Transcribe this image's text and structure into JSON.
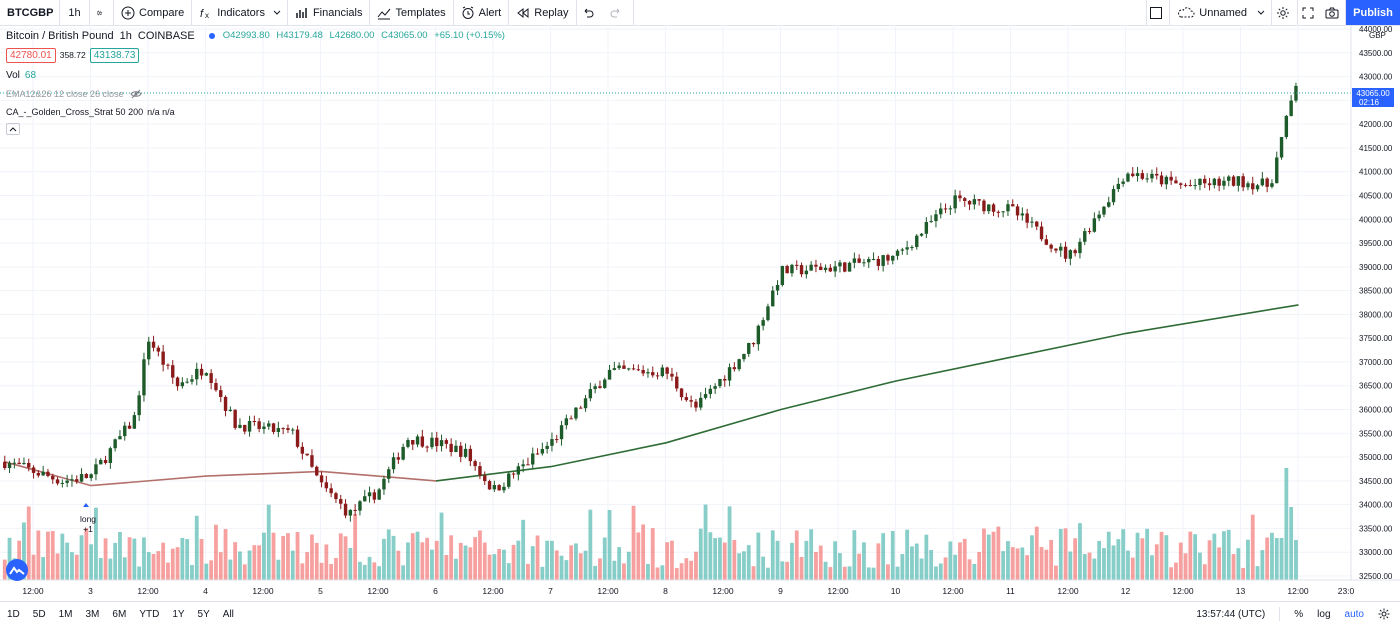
{
  "toolbar": {
    "symbol": "BTCGBP",
    "interval": "1h",
    "compare": "Compare",
    "indicators": "Indicators",
    "financials": "Financials",
    "templates": "Templates",
    "alert": "Alert",
    "replay": "Replay",
    "layout_name": "Unnamed",
    "publish": "Publish"
  },
  "legend": {
    "title": "Bitcoin / British Pound",
    "interval": "1h",
    "exchange": "COINBASE",
    "ohlc": {
      "o": "O42993.80",
      "h": "H43179.48",
      "l": "L42680.00",
      "c": "C43065.00",
      "chg": "+65.10 (+0.15%)"
    },
    "bid": "42780.01",
    "spread": "358.72",
    "ask": "43138.73",
    "vol_label": "Vol",
    "vol_value": "68",
    "ema_label": "EMA12&26 12 close 26 close",
    "strat_label": "CA_-_Golden_Cross_Strat 50 200",
    "strat_vals": "n/a  n/a"
  },
  "price_axis": {
    "currency": "GBP",
    "labels": [
      "44000.00",
      "43500.00",
      "43000.00",
      "42500.00",
      "42000.00",
      "41500.00",
      "41000.00",
      "40500.00",
      "40000.00",
      "39500.00",
      "39000.00",
      "38500.00",
      "38000.00",
      "37500.00",
      "37000.00",
      "36500.00",
      "36000.00",
      "35500.00",
      "35000.00",
      "34500.00",
      "34000.00",
      "33500.00",
      "33000.00",
      "32500.00"
    ],
    "last_price": "43065.00",
    "countdown": "02:16"
  },
  "time_axis": {
    "labels": [
      "12:00",
      "3",
      "12:00",
      "4",
      "12:00",
      "5",
      "12:00",
      "6",
      "12:00",
      "7",
      "12:00",
      "8",
      "12:00",
      "9",
      "12:00",
      "10",
      "12:00",
      "11",
      "12:00",
      "12",
      "12:00",
      "13",
      "12:00",
      "23:0"
    ]
  },
  "signal": {
    "text": "long",
    "qty": "+1"
  },
  "bottom": {
    "ranges": [
      "1D",
      "5D",
      "1M",
      "3M",
      "6M",
      "YTD",
      "1Y",
      "5Y",
      "All"
    ],
    "clock": "13:57:44 (UTC)",
    "percent": "%",
    "log": "log",
    "auto": "auto"
  },
  "colors": {
    "up": "#26a69a",
    "down": "#ef5350",
    "up_candle": "#1e5b2a",
    "down_candle": "#8b1a1a",
    "accent": "#2962ff",
    "ma": "#2e6b35",
    "ma_old": "#b3706a"
  },
  "chart_data": {
    "type": "candlestick",
    "title": "Bitcoin / British Pound 1h COINBASE",
    "x_range": [
      "Jan 2 12:00",
      "Jan 13 ~14:00"
    ],
    "y_range": [
      32300,
      44300
    ],
    "close_path": [
      {
        "t": "2 06:00",
        "p": 34900
      },
      {
        "t": "2 18:00",
        "p": 34500
      },
      {
        "t": "3 00:00",
        "p": 34600
      },
      {
        "t": "3 09:00",
        "p": 35800
      },
      {
        "t": "3 12:00",
        "p": 37500
      },
      {
        "t": "3 18:00",
        "p": 36500
      },
      {
        "t": "4 00:00",
        "p": 36900
      },
      {
        "t": "4 06:00",
        "p": 35700
      },
      {
        "t": "4 18:00",
        "p": 35500
      },
      {
        "t": "5 00:00",
        "p": 34400
      },
      {
        "t": "5 06:00",
        "p": 33800
      },
      {
        "t": "5 12:00",
        "p": 34300
      },
      {
        "t": "5 18:00",
        "p": 35400
      },
      {
        "t": "6 00:00",
        "p": 35300
      },
      {
        "t": "6 06:00",
        "p": 35100
      },
      {
        "t": "6 12:00",
        "p": 34300
      },
      {
        "t": "7 00:00",
        "p": 35300
      },
      {
        "t": "7 12:00",
        "p": 36800
      },
      {
        "t": "8 00:00",
        "p": 36800
      },
      {
        "t": "8 06:00",
        "p": 36000
      },
      {
        "t": "8 18:00",
        "p": 37400
      },
      {
        "t": "9 00:00",
        "p": 38900
      },
      {
        "t": "9 12:00",
        "p": 39000
      },
      {
        "t": "10 00:00",
        "p": 39200
      },
      {
        "t": "10 12:00",
        "p": 40400
      },
      {
        "t": "11 00:00",
        "p": 40200
      },
      {
        "t": "11 12:00",
        "p": 39200
      },
      {
        "t": "12 00:00",
        "p": 41000
      },
      {
        "t": "12 12:00",
        "p": 40700
      },
      {
        "t": "13 00:00",
        "p": 40800
      },
      {
        "t": "13 06:00",
        "p": 40700
      },
      {
        "t": "13 12:00",
        "p": 43065
      }
    ],
    "moving_average_200": [
      {
        "t": "2 06:00",
        "p": 34900
      },
      {
        "t": "3 00:00",
        "p": 34400
      },
      {
        "t": "4 00:00",
        "p": 34600
      },
      {
        "t": "5 00:00",
        "p": 34700
      },
      {
        "t": "6 00:00",
        "p": 34500
      },
      {
        "t": "7 00:00",
        "p": 34800
      },
      {
        "t": "8 00:00",
        "p": 35300
      },
      {
        "t": "9 00:00",
        "p": 36000
      },
      {
        "t": "10 00:00",
        "p": 36600
      },
      {
        "t": "11 00:00",
        "p": 37100
      },
      {
        "t": "12 00:00",
        "p": 37600
      },
      {
        "t": "13 12:00",
        "p": 38200
      }
    ]
  }
}
